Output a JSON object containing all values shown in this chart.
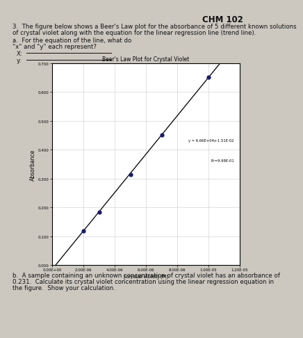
{
  "title": "Beer's Law Plot for Crystal Violet",
  "xlabel": "[crystal violet] (M)",
  "ylabel": "Absorbance",
  "slope": 66600,
  "intercept": -0.0151,
  "r_squared": 0.999,
  "equation_text": "y = 6.66E+04x-1.51E-02",
  "r2_text": "R²=9.99E-01",
  "x_data": [
    2e-06,
    3e-06,
    5e-06,
    7e-06,
    1e-05
  ],
  "y_data": [
    0.118,
    0.184,
    0.315,
    0.451,
    0.651
  ],
  "xlim": [
    0,
    1.2e-05
  ],
  "ylim": [
    0.0,
    0.7
  ],
  "yticks": [
    0.0,
    0.1,
    0.2,
    0.3,
    0.4,
    0.5,
    0.6,
    0.7
  ],
  "xticks": [
    0.0,
    2e-06,
    4e-06,
    6e-06,
    8e-06,
    1e-05,
    1.2e-05
  ],
  "marker_color": "#1a1a6e",
  "line_color": "#111111",
  "plot_bg": "#ffffff",
  "page_bg": "#ccc8c0",
  "text_color": "#111111",
  "header": "CHM 102",
  "q3_line1": "3.  The figure below shows a Beer's Law plot for the absorbance of 5 different known solutions",
  "q3_line2": "of crystal violet along with the equation for the linear regression line (trend line).",
  "qa_line1": "a.  For the equation of the line, what do",
  "qa_line2": "\"x\" and \"y\" each represent?",
  "qa_x": "X:",
  "qa_y": "y:",
  "qb_line1": "b.  A sample containing an unknown concentration of crystal violet has an absorbance of",
  "qb_line2": "0.231.  Calculate its crystal violet concentration using the linear regression equation in",
  "qb_line3": "the figure.  Show your calculation."
}
